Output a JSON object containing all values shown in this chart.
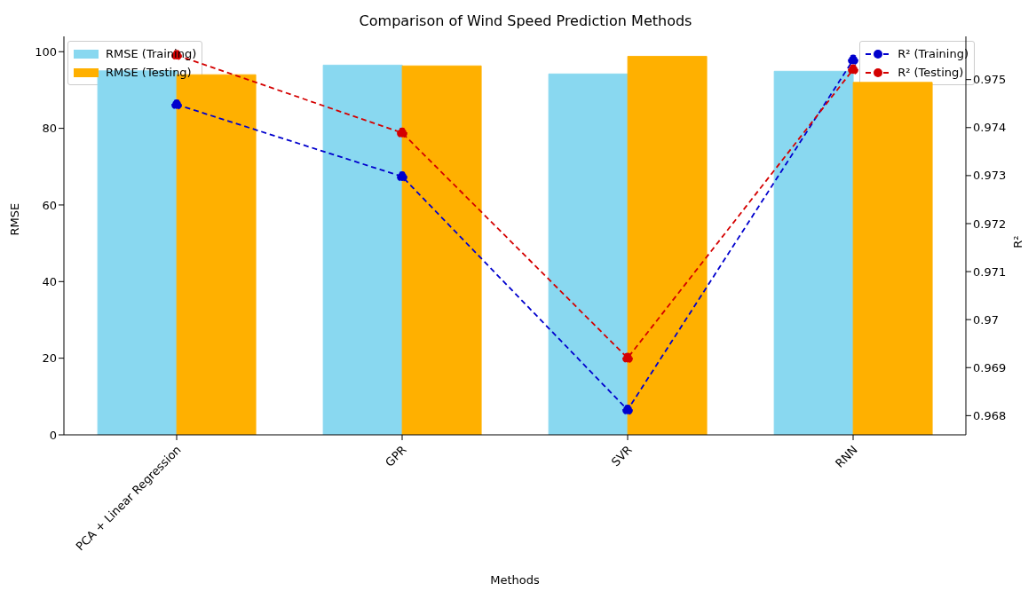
{
  "chart_data": {
    "type": "bar",
    "title": "Comparison of Wind Speed Prediction Methods",
    "xlabel": "Methods",
    "ylabel": "RMSE",
    "y2label": "R²",
    "categories": [
      "PCA + Linear Regression",
      "GPR",
      "SVR",
      "RNN"
    ],
    "series": [
      {
        "name": "RMSE (Training)",
        "color": "#89d8f0",
        "values": [
          95,
          96.5,
          94.2,
          94.9
        ]
      },
      {
        "name": "RMSE (Testing)",
        "color": "#ffb000",
        "values": [
          94,
          96.3,
          98.8,
          92
        ]
      },
      {
        "name": "R² (Training)",
        "type": "line",
        "axis": "y2",
        "color": "#0000cd",
        "values": [
          0.97448,
          0.97298,
          0.96812,
          0.97541
        ]
      },
      {
        "name": "R² (Testing)",
        "type": "line",
        "axis": "y2",
        "color": "#d40000",
        "values": [
          0.97551,
          0.97389,
          0.9692,
          0.97521
        ]
      }
    ],
    "ylim": [
      0,
      104
    ],
    "yticks": [
      0,
      20,
      40,
      60,
      80,
      100
    ],
    "y2lim": [
      0.9676,
      0.9759
    ],
    "y2ticks": [
      0.968,
      0.969,
      0.97,
      0.971,
      0.972,
      0.973,
      0.974,
      0.975
    ],
    "marker": "circle",
    "line_style": "dashed",
    "legend": "top left",
    "grid": false
  }
}
